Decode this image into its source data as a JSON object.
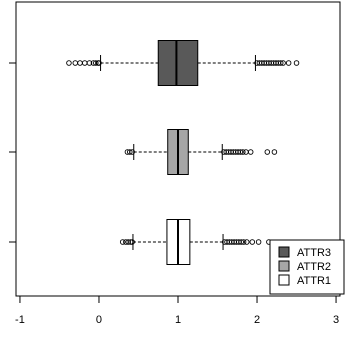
{
  "chart_data": {
    "type": "boxplot",
    "orientation": "horizontal",
    "title": "",
    "xlabel": "",
    "ylabel": "",
    "xlim": [
      -1.05,
      3.05
    ],
    "x_ticks": [
      -1,
      0,
      1,
      2,
      3
    ],
    "x_tick_labels": [
      "-1",
      "0",
      "1",
      "2",
      "3"
    ],
    "grid": false,
    "legend_position": "bottom-right",
    "series": [
      {
        "name": "ATTR3",
        "fill": "#595959",
        "q1": 0.75,
        "median": 0.98,
        "q3": 1.25,
        "whisker_low": 0.02,
        "whisker_high": 1.98,
        "outliers": [
          -0.38,
          -0.3,
          -0.24,
          -0.18,
          -0.12,
          -0.07,
          -0.04,
          -0.01,
          0.0,
          2.0,
          2.03,
          2.06,
          2.09,
          2.12,
          2.15,
          2.18,
          2.21,
          2.24,
          2.27,
          2.3,
          2.33,
          2.4,
          2.5
        ]
      },
      {
        "name": "ATTR2",
        "fill": "#a6a6a6",
        "q1": 0.87,
        "median": 1.0,
        "q3": 1.13,
        "whisker_low": 0.44,
        "whisker_high": 1.56,
        "outliers": [
          0.36,
          0.39,
          0.42,
          1.58,
          1.61,
          1.64,
          1.67,
          1.7,
          1.73,
          1.76,
          1.79,
          1.82,
          1.86,
          1.92,
          2.13,
          2.22
        ]
      },
      {
        "name": "ATTR1",
        "fill": "#ffffff",
        "q1": 0.86,
        "median": 1.0,
        "q3": 1.15,
        "whisker_low": 0.43,
        "whisker_high": 1.57,
        "outliers": [
          0.3,
          0.34,
          0.37,
          0.4,
          0.42,
          1.59,
          1.62,
          1.65,
          1.68,
          1.71,
          1.74,
          1.77,
          1.8,
          1.83,
          1.87,
          1.94,
          2.02,
          2.15
        ]
      }
    ]
  }
}
